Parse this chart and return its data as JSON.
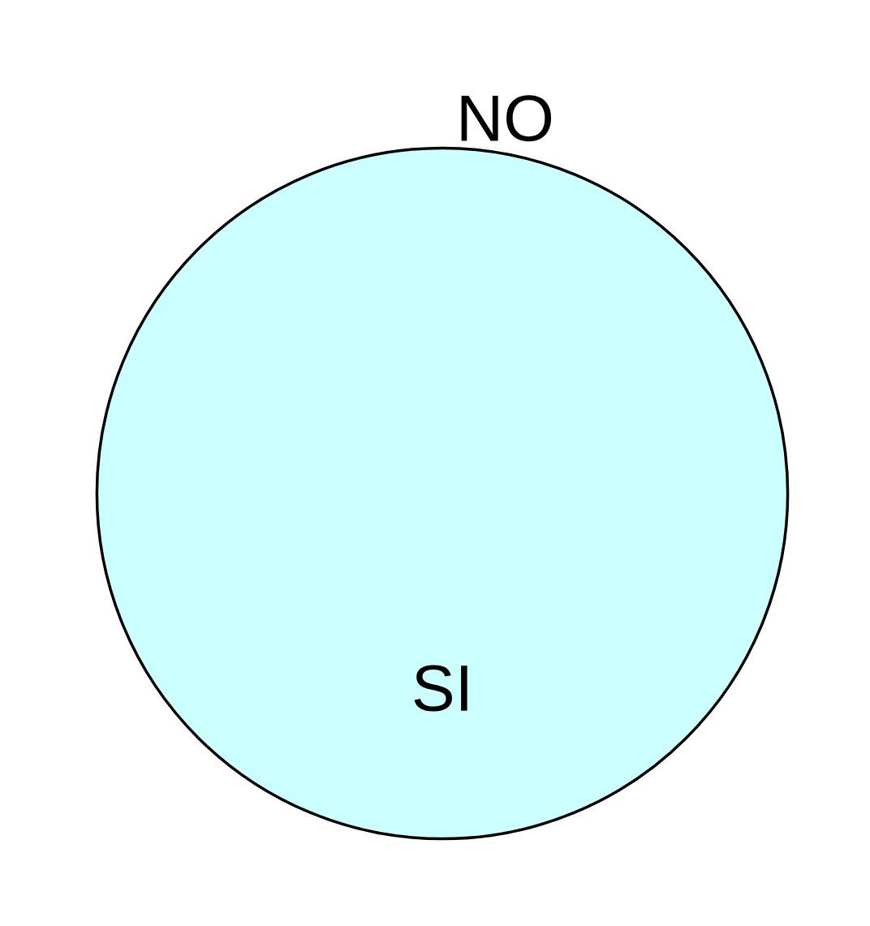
{
  "chart_data": {
    "type": "pie",
    "categories": [
      "NO",
      "SI"
    ],
    "values": [
      0,
      100
    ],
    "colors": [
      "#ccffff",
      "#ccffff"
    ]
  }
}
